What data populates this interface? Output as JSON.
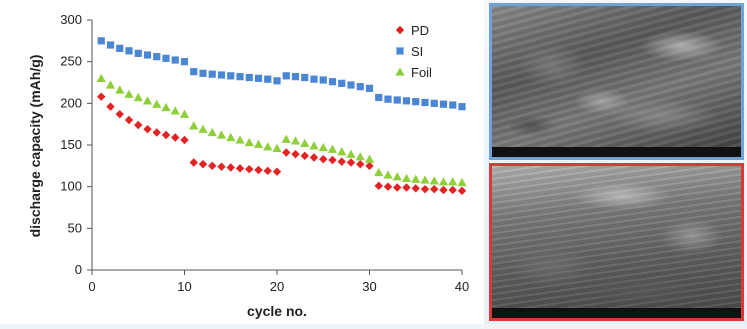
{
  "chart_data": {
    "type": "scatter",
    "xlabel": "cycle no.",
    "ylabel": "discharge capacity (mAh/g)",
    "xlim": [
      0,
      40
    ],
    "ylim": [
      0,
      300
    ],
    "xticks": [
      0,
      10,
      20,
      30,
      40
    ],
    "yticks": [
      0,
      50,
      100,
      150,
      200,
      250,
      300
    ],
    "grid": false,
    "legend_position": "top-right",
    "series": [
      {
        "name": "PD",
        "marker": "diamond",
        "color": "#e32222",
        "x": [
          1,
          2,
          3,
          4,
          5,
          6,
          7,
          8,
          9,
          10,
          11,
          12,
          13,
          14,
          15,
          16,
          17,
          18,
          19,
          20,
          21,
          22,
          23,
          24,
          25,
          26,
          27,
          28,
          29,
          30,
          31,
          32,
          33,
          34,
          35,
          36,
          37,
          38,
          39,
          40
        ],
        "y": [
          208,
          196,
          187,
          180,
          174,
          169,
          165,
          162,
          159,
          156,
          129,
          127,
          125,
          124,
          123,
          122,
          121,
          120,
          119,
          118,
          141,
          139,
          137,
          135,
          133,
          132,
          130,
          129,
          127,
          125,
          101,
          100,
          99,
          99,
          98,
          97,
          97,
          96,
          96,
          95
        ]
      },
      {
        "name": "SI",
        "marker": "square",
        "color": "#4a86d4",
        "x": [
          1,
          2,
          3,
          4,
          5,
          6,
          7,
          8,
          9,
          10,
          11,
          12,
          13,
          14,
          15,
          16,
          17,
          18,
          19,
          20,
          21,
          22,
          23,
          24,
          25,
          26,
          27,
          28,
          29,
          30,
          31,
          32,
          33,
          34,
          35,
          36,
          37,
          38,
          39,
          40
        ],
        "y": [
          275,
          270,
          266,
          263,
          260,
          258,
          256,
          254,
          252,
          250,
          238,
          236,
          235,
          234,
          233,
          232,
          231,
          230,
          229,
          227,
          233,
          232,
          231,
          229,
          228,
          226,
          224,
          222,
          220,
          218,
          207,
          205,
          204,
          203,
          202,
          201,
          200,
          199,
          198,
          196
        ]
      },
      {
        "name": "Foil",
        "marker": "triangle",
        "color": "#8fcf3a",
        "x": [
          1,
          2,
          3,
          4,
          5,
          6,
          7,
          8,
          9,
          10,
          11,
          12,
          13,
          14,
          15,
          16,
          17,
          18,
          19,
          20,
          21,
          22,
          23,
          24,
          25,
          26,
          27,
          28,
          29,
          30,
          31,
          32,
          33,
          34,
          35,
          36,
          37,
          38,
          39,
          40
        ],
        "y": [
          230,
          222,
          216,
          211,
          207,
          203,
          199,
          195,
          191,
          187,
          173,
          169,
          165,
          162,
          159,
          156,
          153,
          151,
          148,
          146,
          157,
          155,
          152,
          149,
          147,
          145,
          142,
          139,
          136,
          133,
          117,
          114,
          112,
          110,
          109,
          108,
          107,
          106,
          106,
          105
        ]
      }
    ]
  },
  "images": {
    "top": {
      "border_color": "#6fa3d6"
    },
    "bottom": {
      "border_color": "#d83a3a"
    }
  }
}
